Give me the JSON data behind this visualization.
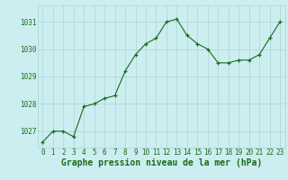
{
  "x": [
    0,
    1,
    2,
    3,
    4,
    5,
    6,
    7,
    8,
    9,
    10,
    11,
    12,
    13,
    14,
    15,
    16,
    17,
    18,
    19,
    20,
    21,
    22,
    23
  ],
  "y": [
    1026.6,
    1027.0,
    1027.0,
    1026.8,
    1027.9,
    1028.0,
    1028.2,
    1028.3,
    1029.2,
    1029.8,
    1030.2,
    1030.4,
    1031.0,
    1031.1,
    1030.5,
    1030.2,
    1030.0,
    1029.5,
    1029.5,
    1029.6,
    1029.6,
    1029.8,
    1030.4,
    1031.0
  ],
  "line_color": "#1a6b1a",
  "marker_color": "#1a6b1a",
  "bg_color": "#cceef0",
  "grid_color": "#aad4d8",
  "title": "Graphe pression niveau de la mer (hPa)",
  "ylim_min": 1026.4,
  "ylim_max": 1031.6,
  "yticks": [
    1027,
    1028,
    1029,
    1030,
    1031
  ],
  "xticks": [
    0,
    1,
    2,
    3,
    4,
    5,
    6,
    7,
    8,
    9,
    10,
    11,
    12,
    13,
    14,
    15,
    16,
    17,
    18,
    19,
    20,
    21,
    22,
    23
  ],
  "title_color": "#1a6b1a",
  "title_fontsize": 7.0,
  "tick_color": "#1a6b1a",
  "tick_fontsize": 5.5
}
